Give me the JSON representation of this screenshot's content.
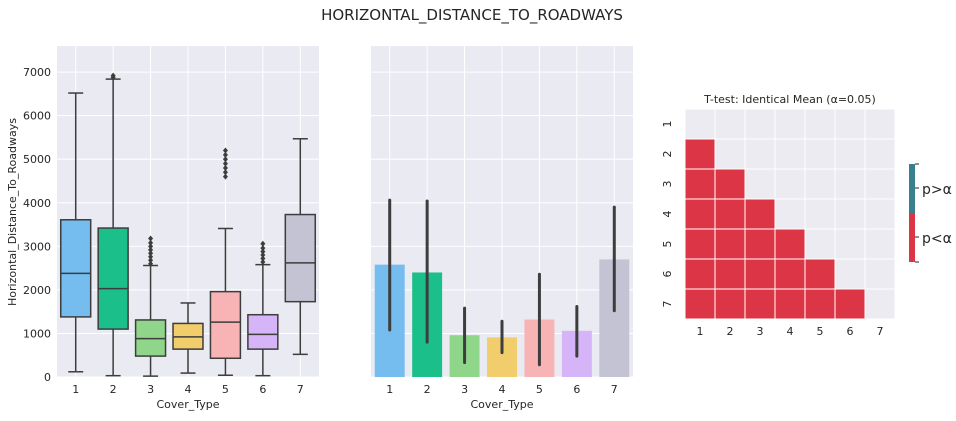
{
  "suptitle": "HORIZONTAL_DISTANCE_TO_ROADWAYS",
  "colors": {
    "panel_bg": "#eaeaf2",
    "grid": "#ffffff",
    "line": "#3d3d3d",
    "significant": "#dc3545",
    "not_significant": "#ebebf1",
    "cbar_top": "#3a7f8c",
    "cbar_bottom": "#dc3545"
  },
  "chart_data": [
    {
      "type": "box",
      "xlabel": "Cover_Type",
      "ylabel": "Horizontal_Distance_To_Roadways",
      "ylim": [
        0,
        7600
      ],
      "yticks": [
        0,
        1000,
        2000,
        3000,
        4000,
        5000,
        6000,
        7000
      ],
      "categories": [
        "1",
        "2",
        "3",
        "4",
        "5",
        "6",
        "7"
      ],
      "boxes": [
        {
          "cat": "1",
          "color": "#74bdee",
          "whislo": 120,
          "q1": 1380,
          "med": 2380,
          "q3": 3610,
          "whishi": 6520,
          "fliers": []
        },
        {
          "cat": "2",
          "color": "#1bbf8a",
          "whislo": 30,
          "q1": 1100,
          "med": 2030,
          "q3": 3420,
          "whishi": 6840,
          "fliers": [
            6880,
            6920
          ]
        },
        {
          "cat": "3",
          "color": "#8fd68a",
          "whislo": 20,
          "q1": 480,
          "med": 880,
          "q3": 1310,
          "whishi": 2560,
          "fliers": [
            2600,
            2680,
            2760,
            2840,
            2920,
            3000,
            3080,
            3180
          ]
        },
        {
          "cat": "4",
          "color": "#f1cd6c",
          "whislo": 90,
          "q1": 640,
          "med": 920,
          "q3": 1230,
          "whishi": 1700,
          "fliers": []
        },
        {
          "cat": "5",
          "color": "#f8b4b4",
          "whislo": 40,
          "q1": 430,
          "med": 1260,
          "q3": 1960,
          "whishi": 3410,
          "fliers": [
            4600,
            4700,
            4800,
            4900,
            5000,
            5100,
            5200
          ]
        },
        {
          "cat": "6",
          "color": "#d5b4f7",
          "whislo": 30,
          "q1": 640,
          "med": 980,
          "q3": 1430,
          "whishi": 2580,
          "fliers": [
            2640,
            2720,
            2800,
            2880,
            2960,
            3060
          ]
        },
        {
          "cat": "7",
          "color": "#c3c3d3",
          "whislo": 520,
          "q1": 1730,
          "med": 2620,
          "q3": 3730,
          "whishi": 5470,
          "fliers": []
        }
      ]
    },
    {
      "type": "bar",
      "xlabel": "Cover_Type",
      "ylim": [
        0,
        7600
      ],
      "categories": [
        "1",
        "2",
        "3",
        "4",
        "5",
        "6",
        "7"
      ],
      "values": [
        2580,
        2400,
        960,
        910,
        1320,
        1060,
        2700
      ],
      "errors": [
        [
          1080,
          4060
        ],
        [
          800,
          4040
        ],
        [
          330,
          1580
        ],
        [
          560,
          1280
        ],
        [
          280,
          2360
        ],
        [
          480,
          1620
        ],
        [
          1520,
          3900
        ]
      ],
      "colors": [
        "#74bdee",
        "#1bbf8a",
        "#8fd68a",
        "#f1cd6c",
        "#f8b4b4",
        "#d5b4f7",
        "#c3c3d3"
      ]
    },
    {
      "type": "heatmap",
      "title": "T-test: Identical Mean (α=0.05)",
      "rows": [
        "1",
        "2",
        "3",
        "4",
        "5",
        "6",
        "7"
      ],
      "cols": [
        "1",
        "2",
        "3",
        "4",
        "5",
        "6",
        "7"
      ],
      "comment": "1 = p<α (significant), 0 = p>α",
      "matrix": [
        [
          0,
          0,
          0,
          0,
          0,
          0,
          0
        ],
        [
          1,
          0,
          0,
          0,
          0,
          0,
          0
        ],
        [
          1,
          1,
          0,
          0,
          0,
          0,
          0
        ],
        [
          1,
          1,
          1,
          0,
          0,
          0,
          0
        ],
        [
          1,
          1,
          1,
          1,
          0,
          0,
          0
        ],
        [
          1,
          1,
          1,
          1,
          1,
          0,
          0
        ],
        [
          1,
          1,
          1,
          1,
          1,
          1,
          0
        ]
      ],
      "colorbar_labels": [
        "p>α",
        "p<α"
      ]
    }
  ]
}
